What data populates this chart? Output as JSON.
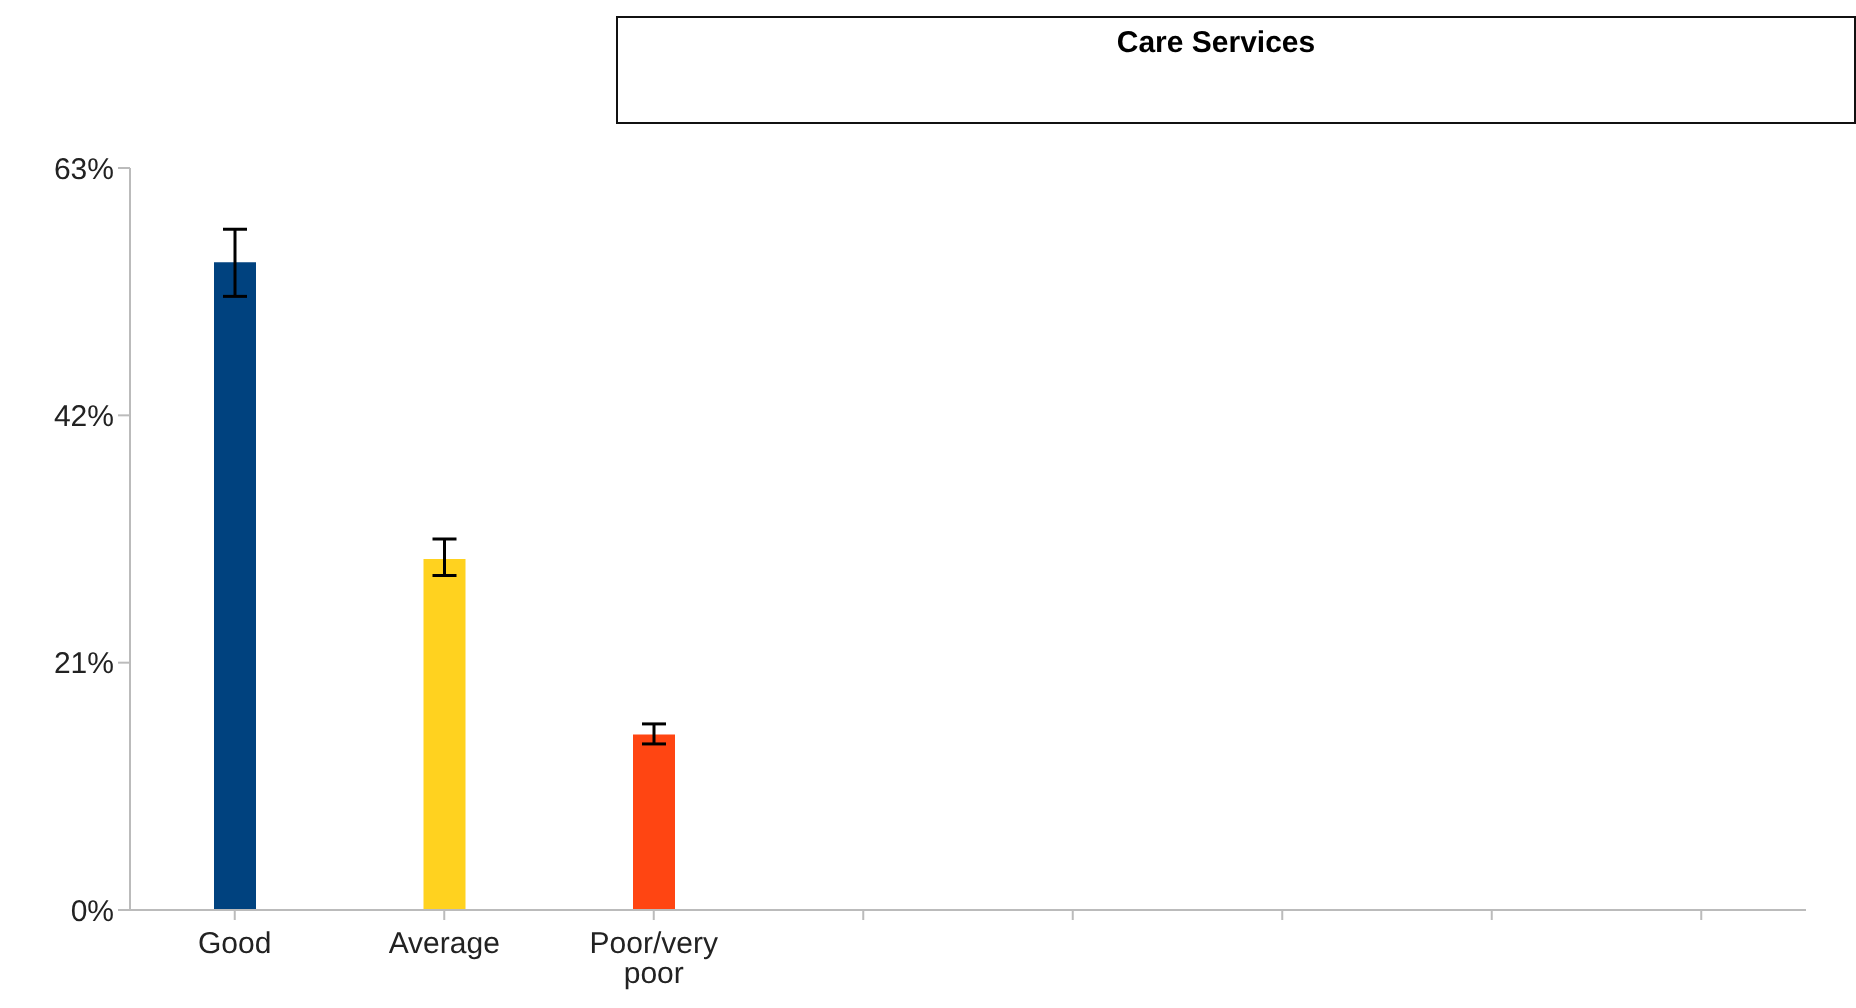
{
  "chart_data": {
    "type": "bar",
    "title": "Care Services",
    "categories": [
      "Good",
      "Average",
      "Poor/very poor",
      null,
      null,
      null,
      null,
      null
    ],
    "values": [
      55,
      29.8,
      14.9,
      null,
      null,
      null,
      null,
      null
    ],
    "colors": [
      "#00427f",
      "#ffd21f",
      "#ff4512",
      "#00427f",
      "#00427f",
      "#00427f",
      "#00427f",
      "#00427f"
    ],
    "errors": [
      [
        52.1,
        57.8
      ],
      [
        28.4,
        31.5
      ],
      [
        14.1,
        15.8
      ],
      null,
      null,
      null,
      null,
      null
    ],
    "ylim": [
      0,
      63
    ],
    "yticks": [
      {
        "value": 0,
        "label": "0%"
      },
      {
        "value": 21,
        "label": "21%"
      },
      {
        "value": 42,
        "label": "42%"
      },
      {
        "value": 63,
        "label": "63%"
      }
    ]
  }
}
